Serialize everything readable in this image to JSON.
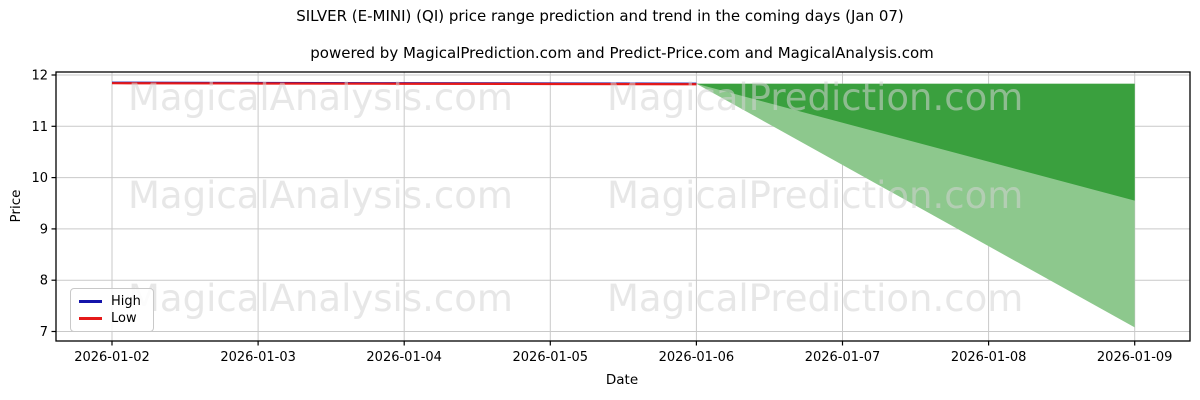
{
  "chart_data": {
    "type": "line",
    "title": "SILVER (E-MINI) (QI) price range prediction and trend in the coming days (Jan 07)",
    "subtitle": "powered by MagicalPrediction.com and Predict-Price.com and MagicalAnalysis.com",
    "xlabel": "Date",
    "ylabel": "Price",
    "x_ticks": [
      "2026-01-02",
      "2026-01-03",
      "2026-01-04",
      "2026-01-05",
      "2026-01-06",
      "2026-01-07",
      "2026-01-08",
      "2026-01-09"
    ],
    "y_ticks": [
      12,
      11,
      10,
      9,
      8,
      7
    ],
    "ylim": [
      6.8,
      12.1
    ],
    "grid": true,
    "legend_position": "lower left",
    "series": [
      {
        "name": "High",
        "color": "#1414aa",
        "x": [
          "2026-01-02",
          "2026-01-03",
          "2026-01-04",
          "2026-01-05",
          "2026-01-06"
        ],
        "values": [
          11.85,
          11.845,
          11.84,
          11.835,
          11.83
        ]
      },
      {
        "name": "Low",
        "color": "#e51919",
        "x": [
          "2026-01-02",
          "2026-01-03",
          "2026-01-04",
          "2026-01-05",
          "2026-01-06"
        ],
        "values": [
          11.84,
          11.835,
          11.83,
          11.825,
          11.82
        ]
      }
    ],
    "forecast_bands": [
      {
        "name": "outer-range",
        "color": "#8dc88d",
        "x": [
          "2026-01-06",
          "2026-01-09"
        ],
        "upper": [
          11.83,
          11.83
        ],
        "lower": [
          11.83,
          7.08
        ]
      },
      {
        "name": "inner-range",
        "color": "#3aa03e",
        "x": [
          "2026-01-06",
          "2026-01-09"
        ],
        "upper": [
          11.83,
          11.83
        ],
        "lower": [
          11.83,
          9.55
        ]
      }
    ],
    "watermarks": [
      "MagicalAnalysis.com",
      "MagicalPrediction.com"
    ],
    "colors": {
      "grid": "#c9c9c9",
      "frame": "#000000",
      "watermark": "#d3d3d3"
    }
  }
}
